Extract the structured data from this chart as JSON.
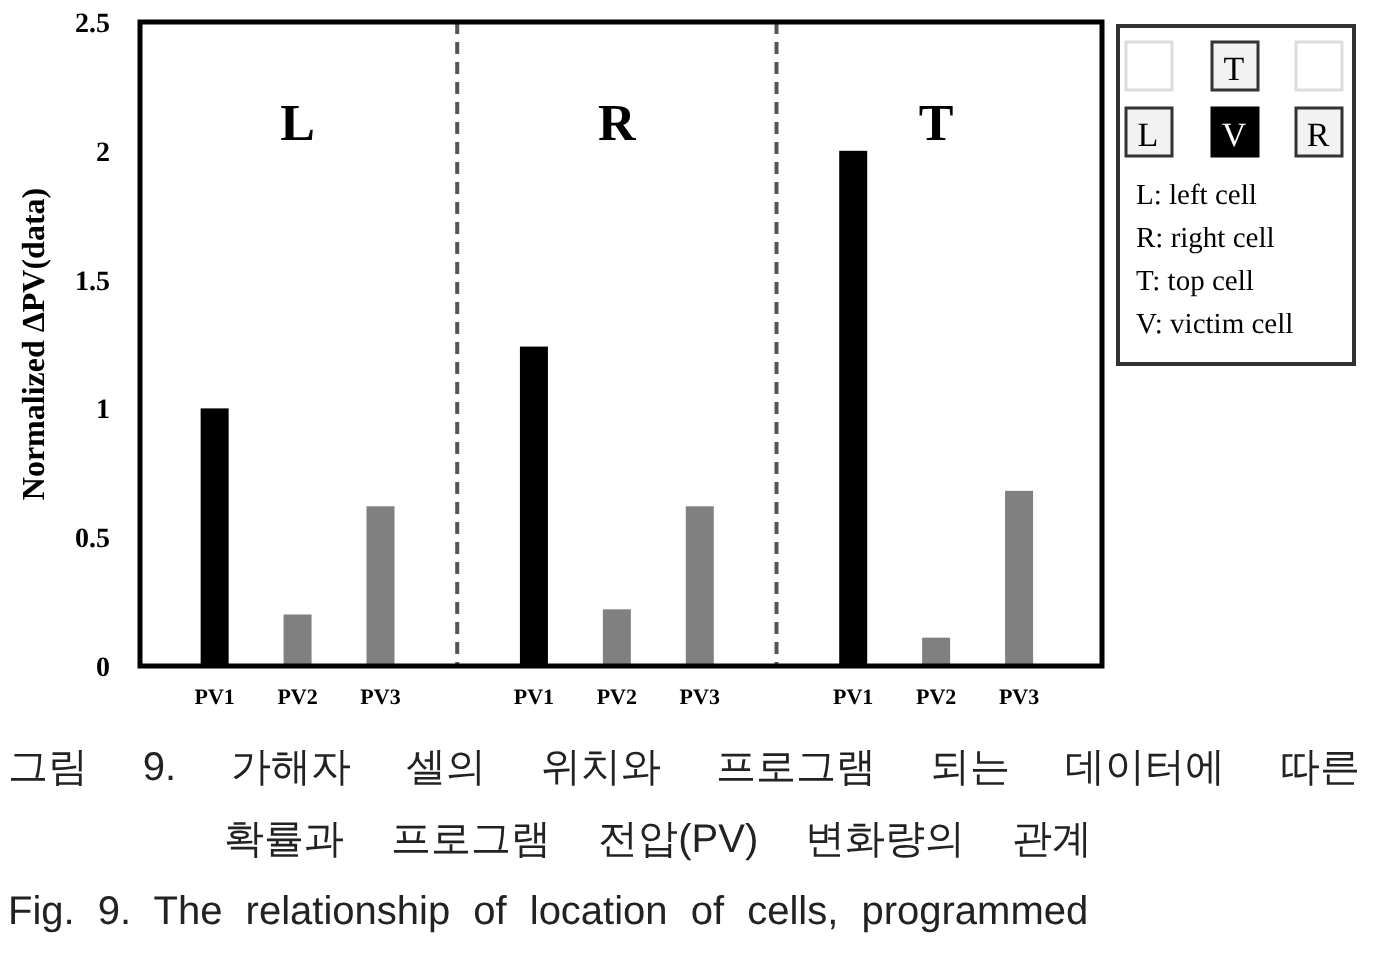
{
  "chart_data": {
    "type": "bar",
    "ylabel": "Normalized ΔPV(data)",
    "categories": [
      "PV1",
      "PV2",
      "PV3",
      "PV1",
      "PV2",
      "PV3",
      "PV1",
      "PV2",
      "PV3"
    ],
    "values": [
      1.0,
      0.2,
      0.62,
      1.24,
      0.22,
      0.62,
      2.0,
      0.11,
      0.68
    ],
    "colors": [
      "#000000",
      "#808080",
      "#808080",
      "#000000",
      "#808080",
      "#808080",
      "#000000",
      "#808080",
      "#808080"
    ],
    "ylim": [
      0,
      2.5
    ],
    "yticks": [
      0,
      0.5,
      1,
      1.5,
      2,
      2.5
    ],
    "grid": false,
    "annotations": [
      "L",
      "R",
      "T",
      "T",
      "L",
      "V",
      "R",
      "L: left cell",
      "R: right cell",
      "T: top cell",
      "V: victim cell",
      "그림 9. 가해자 셀의 위치와 프로그램 되는 데이터에 따른 확률과 프로그램 전압(PV) 변화량의 관계",
      "Fig. 9. The relationship of location of cells, programmed"
    ]
  }
}
